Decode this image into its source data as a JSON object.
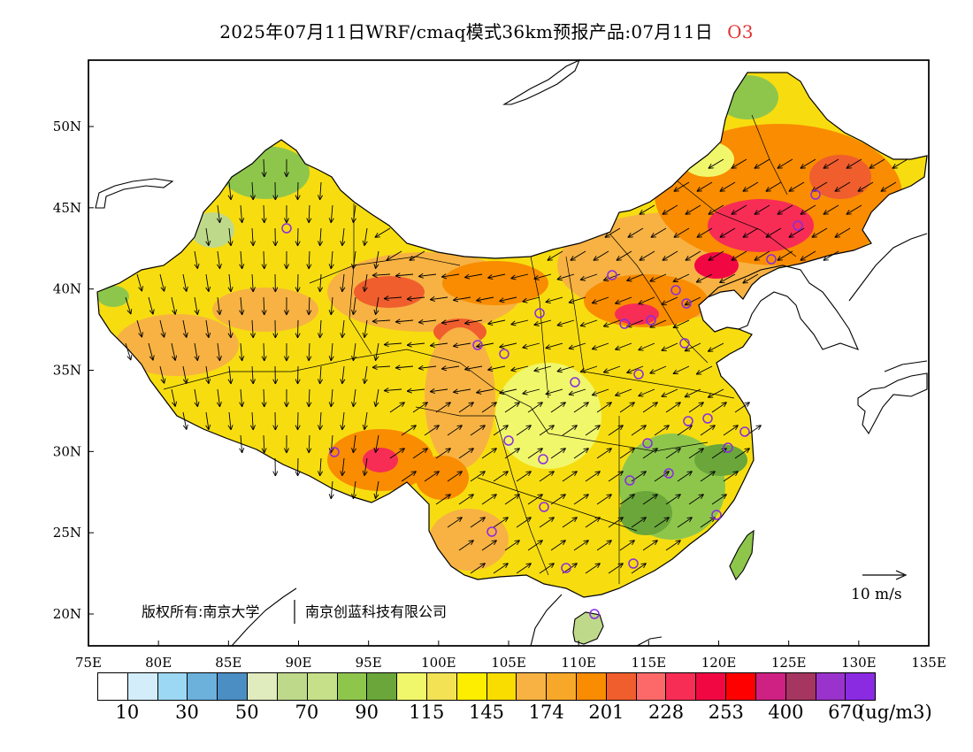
{
  "title": {
    "main": "2025年07月11日WRF/cmaq模式36km预报产品:07月11日",
    "pollutant": "O3"
  },
  "axes": {
    "x_ticks": [
      "75E",
      "80E",
      "85E",
      "90E",
      "95E",
      "100E",
      "105E",
      "110E",
      "115E",
      "120E",
      "125E",
      "130E",
      "135E"
    ],
    "y_ticks": [
      "20N",
      "25N",
      "30N",
      "35N",
      "40N",
      "45N",
      "50N"
    ]
  },
  "copyright": {
    "left": "版权所有:南京大学",
    "right": "南京创蓝科技有限公司"
  },
  "vector_key": {
    "label": "10 m/s"
  },
  "colorbar": {
    "unit": "(ug/m3)",
    "colors": [
      "#ffffff",
      "#d3eefa",
      "#9cd8f4",
      "#6cb0dc",
      "#4b8ec4",
      "#e0ebbe",
      "#bfd98a",
      "#c6e08a",
      "#8ec64c",
      "#6aa63a",
      "#f1f76a",
      "#f2e254",
      "#fdee00",
      "#f9dc00",
      "#f7b243",
      "#f8a829",
      "#f98c00",
      "#f05e2e",
      "#fd6969",
      "#f72d55",
      "#f10843",
      "#ff0000",
      "#cf2183",
      "#a5365f",
      "#9a33cc",
      "#8a2be2"
    ],
    "labels": [
      "10",
      "30",
      "50",
      "70",
      "90",
      "115",
      "145",
      "174",
      "201",
      "228",
      "253",
      "400",
      "670"
    ]
  },
  "colors": {
    "frame": "#000000",
    "coast": "#000000",
    "pollutant_title": "#e23333",
    "station_marker": "#8a2be2"
  }
}
